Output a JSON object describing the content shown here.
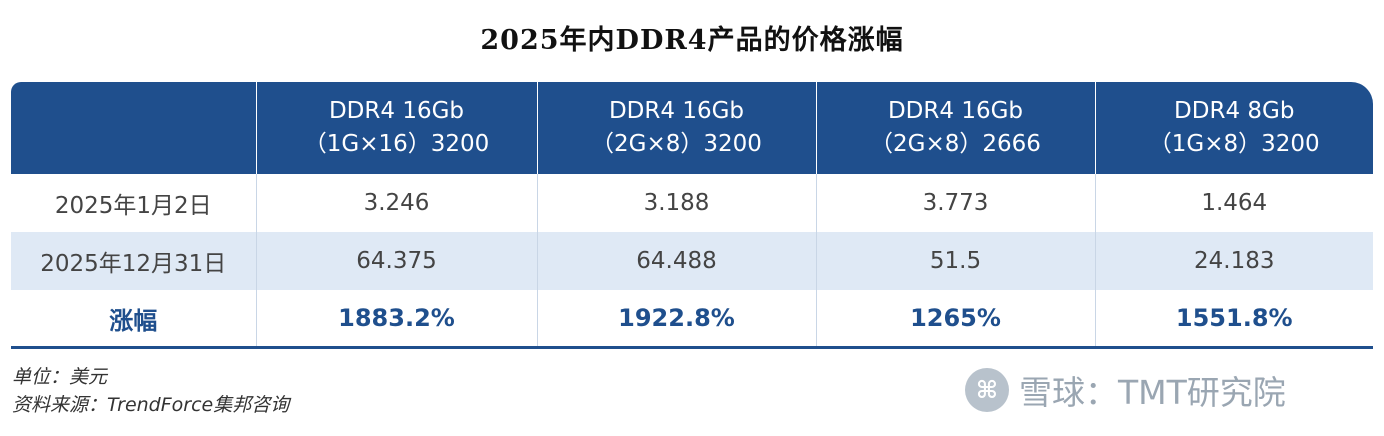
{
  "title": "2025年内DDR4产品的价格涨幅",
  "table": {
    "headers": [
      {
        "line1": "",
        "line2": ""
      },
      {
        "line1": "DDR4 16Gb",
        "line2": "（1G×16）3200"
      },
      {
        "line1": "DDR4 16Gb",
        "line2": "（2G×8）3200"
      },
      {
        "line1": "DDR4 16Gb",
        "line2": "（2G×8）2666"
      },
      {
        "line1": "DDR4 8Gb",
        "line2": "（1G×8）3200"
      }
    ],
    "rows": [
      [
        "2025年1月2日",
        "3.246",
        "3.188",
        "3.773",
        "1.464"
      ],
      [
        "2025年12月31日",
        "64.375",
        "64.488",
        "51.5",
        "24.183"
      ],
      [
        "涨幅",
        "1883.2%",
        "1922.8%",
        "1265%",
        "1551.8%"
      ]
    ]
  },
  "footer": {
    "unit": "单位：美元",
    "source": "资料来源：TrendForce集邦咨询"
  },
  "watermark": {
    "text": "雪球：TMT研究院",
    "icon": "xueqiu-logo-icon"
  },
  "colors": {
    "header_bg": "#1f4f8d",
    "stripe_bg": "#dfe9f5",
    "accent_text": "#1f4f8d"
  }
}
